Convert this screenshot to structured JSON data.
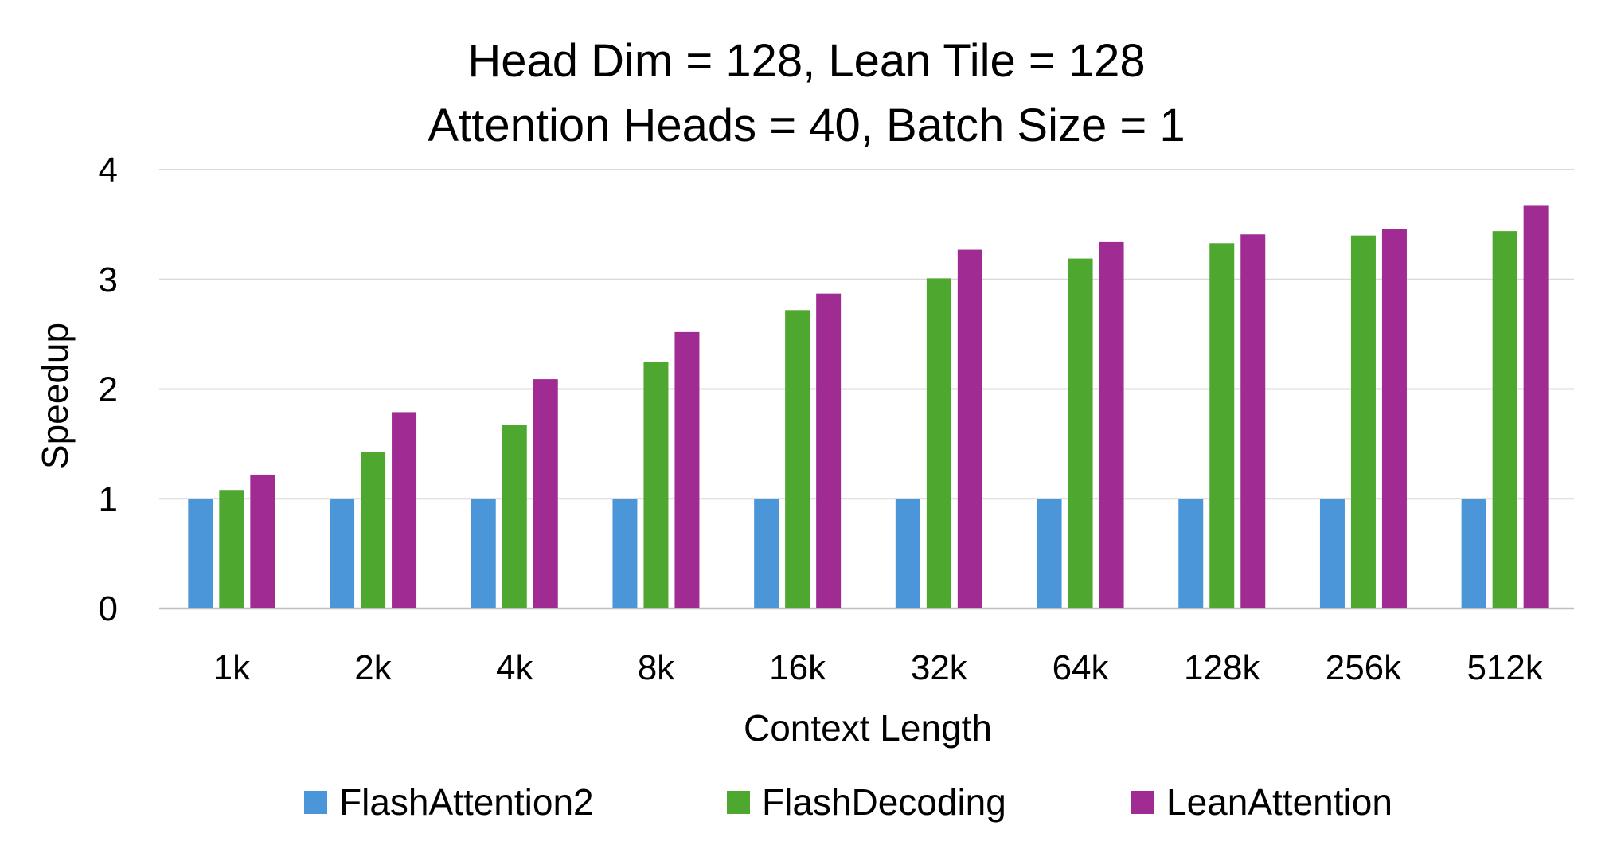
{
  "chart_data": {
    "type": "bar",
    "title": [
      "Head Dim = 128, Lean Tile = 128",
      "Attention Heads = 40, Batch Size = 1"
    ],
    "xlabel": "Context Length",
    "ylabel": "Speedup",
    "categories": [
      "1k",
      "2k",
      "4k",
      "8k",
      "16k",
      "32k",
      "64k",
      "128k",
      "256k",
      "512k"
    ],
    "ylim": [
      0,
      4
    ],
    "yticks": [
      "0",
      "1",
      "2",
      "3",
      "4"
    ],
    "grid": true,
    "legend_position": "bottom",
    "series": [
      {
        "name": "FlashAttention2",
        "color": "#4a96d8",
        "values": [
          1,
          1,
          1,
          1,
          1,
          1,
          1,
          1,
          1,
          1
        ]
      },
      {
        "name": "FlashDecoding",
        "color": "#4ea72e",
        "values": [
          1.08,
          1.43,
          1.67,
          2.25,
          2.72,
          3.01,
          3.19,
          3.33,
          3.4,
          3.44
        ]
      },
      {
        "name": "LeanAttention",
        "color": "#a02b93",
        "values": [
          1.22,
          1.79,
          2.09,
          2.52,
          2.87,
          3.27,
          3.34,
          3.41,
          3.46,
          3.67
        ]
      }
    ]
  }
}
